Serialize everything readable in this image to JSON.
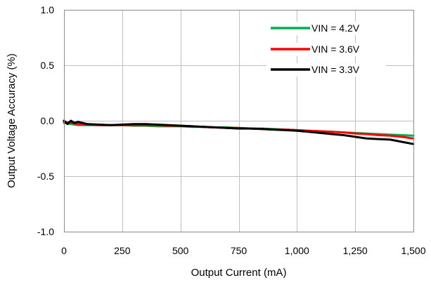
{
  "chart_data": {
    "type": "line",
    "title": "",
    "xlabel": "Output Current (mA)",
    "ylabel": "Output Voltage Accuracy (%)",
    "xlim": [
      0,
      1500
    ],
    "ylim": [
      -1.0,
      1.0
    ],
    "xticks": [
      0,
      250,
      500,
      750,
      1000,
      1250,
      1500
    ],
    "xtick_labels": [
      "0",
      "250",
      "500",
      "750",
      "1,000",
      "1,250",
      "1,500"
    ],
    "yticks": [
      1.0,
      0.5,
      0.0,
      -0.5,
      -1.0
    ],
    "ytick_labels": [
      "1.0",
      "0.5",
      "0.0",
      "-0.5",
      "-1.0"
    ],
    "grid": true,
    "legend_position": "top-right",
    "series": [
      {
        "name": "VIN = 4.2V",
        "color": "#00b050",
        "x": [
          0,
          30,
          60,
          100,
          150,
          200,
          250,
          300,
          350,
          400,
          450,
          500,
          550,
          600,
          650,
          700,
          750,
          800,
          850,
          900,
          950,
          1000,
          1050,
          1100,
          1150,
          1200,
          1250,
          1300,
          1350,
          1400,
          1450,
          1500
        ],
        "y": [
          -0.02,
          -0.03,
          -0.04,
          -0.04,
          -0.04,
          -0.04,
          -0.04,
          -0.045,
          -0.045,
          -0.05,
          -0.05,
          -0.05,
          -0.055,
          -0.055,
          -0.06,
          -0.06,
          -0.065,
          -0.07,
          -0.07,
          -0.075,
          -0.08,
          -0.085,
          -0.09,
          -0.095,
          -0.1,
          -0.105,
          -0.11,
          -0.115,
          -0.12,
          -0.125,
          -0.13,
          -0.135
        ]
      },
      {
        "name": "VIN = 3.6V",
        "color": "#ff0000",
        "x": [
          0,
          30,
          60,
          100,
          150,
          200,
          250,
          300,
          350,
          400,
          450,
          500,
          550,
          600,
          650,
          700,
          750,
          800,
          850,
          900,
          950,
          1000,
          1050,
          1100,
          1150,
          1200,
          1250,
          1300,
          1350,
          1400,
          1450,
          1500
        ],
        "y": [
          -0.01,
          -0.02,
          -0.03,
          -0.035,
          -0.04,
          -0.04,
          -0.04,
          -0.04,
          -0.04,
          -0.04,
          -0.045,
          -0.045,
          -0.05,
          -0.055,
          -0.06,
          -0.065,
          -0.065,
          -0.07,
          -0.075,
          -0.08,
          -0.08,
          -0.085,
          -0.09,
          -0.095,
          -0.1,
          -0.105,
          -0.115,
          -0.12,
          -0.13,
          -0.135,
          -0.145,
          -0.16
        ]
      },
      {
        "name": "VIN = 3.3V",
        "color": "#000000",
        "x": [
          0,
          15,
          30,
          45,
          60,
          100,
          150,
          200,
          250,
          300,
          350,
          400,
          450,
          500,
          550,
          600,
          650,
          700,
          750,
          800,
          850,
          900,
          950,
          1000,
          1050,
          1100,
          1150,
          1200,
          1250,
          1300,
          1350,
          1400,
          1450,
          1500
        ],
        "y": [
          0.0,
          -0.03,
          0.0,
          -0.02,
          -0.01,
          -0.03,
          -0.035,
          -0.04,
          -0.035,
          -0.03,
          -0.03,
          -0.035,
          -0.04,
          -0.045,
          -0.05,
          -0.055,
          -0.06,
          -0.065,
          -0.07,
          -0.07,
          -0.075,
          -0.08,
          -0.085,
          -0.09,
          -0.1,
          -0.11,
          -0.12,
          -0.13,
          -0.145,
          -0.16,
          -0.165,
          -0.17,
          -0.19,
          -0.21
        ]
      }
    ]
  }
}
